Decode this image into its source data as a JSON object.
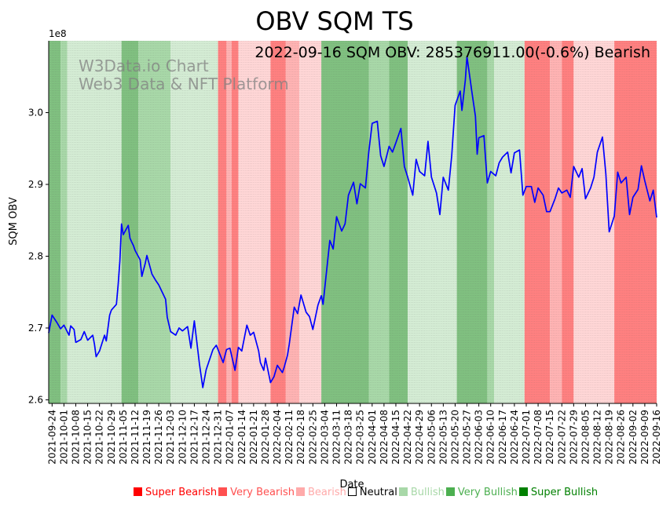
{
  "chart_data": {
    "type": "line",
    "title": "OBV SQM TS",
    "annotation": "2022-09-16 SQM OBV: 285376911.00(-0.6%) Bearish",
    "watermark": [
      "W3Data.io Chart",
      "Web3 Data & NFT Platform"
    ],
    "xlabel": "Date",
    "ylabel": "SQM OBV",
    "y_multiplier_label": "1e8",
    "ylim": [
      2.595,
      3.1
    ],
    "yticks": [
      2.6,
      2.7,
      2.8,
      2.9,
      3.0
    ],
    "ytick_labels": [
      "2.6",
      "2.7",
      "2.8",
      "2.9",
      "3.0"
    ],
    "x_start": "2021-09-22",
    "x_end": "2022-09-16",
    "xtick_labels": [
      "2021-09-24",
      "2021-10-01",
      "2021-10-08",
      "2021-10-15",
      "2021-10-22",
      "2021-10-29",
      "2021-11-05",
      "2021-11-12",
      "2021-11-19",
      "2021-11-26",
      "2021-12-03",
      "2021-12-10",
      "2021-12-17",
      "2021-12-24",
      "2021-12-31",
      "2022-01-07",
      "2022-01-14",
      "2022-01-21",
      "2022-01-28",
      "2022-02-04",
      "2022-02-11",
      "2022-02-18",
      "2022-02-25",
      "2022-03-04",
      "2022-03-11",
      "2022-03-18",
      "2022-03-25",
      "2022-04-01",
      "2022-04-08",
      "2022-04-15",
      "2022-04-22",
      "2022-04-29",
      "2022-05-06",
      "2022-05-13",
      "2022-05-20",
      "2022-05-27",
      "2022-06-03",
      "2022-06-10",
      "2022-06-17",
      "2022-06-24",
      "2022-07-01",
      "2022-07-08",
      "2022-07-15",
      "2022-07-22",
      "2022-07-29",
      "2022-08-05",
      "2022-08-12",
      "2022-08-19",
      "2022-08-26",
      "2022-09-02",
      "2022-09-09",
      "2022-09-16"
    ],
    "grid": "vertical dotted",
    "legend_position": "bottom",
    "series": [
      {
        "color": "#0000ff",
        "x": [
          "2021-09-22",
          "2021-09-24",
          "2021-09-27",
          "2021-09-29",
          "2021-10-01",
          "2021-10-04",
          "2021-10-05",
          "2021-10-07",
          "2021-10-08",
          "2021-10-11",
          "2021-10-13",
          "2021-10-15",
          "2021-10-18",
          "2021-10-19",
          "2021-10-20",
          "2021-10-22",
          "2021-10-25",
          "2021-10-26",
          "2021-10-28",
          "2021-10-29",
          "2021-11-01",
          "2021-11-02",
          "2021-11-03",
          "2021-11-04",
          "2021-11-05",
          "2021-11-08",
          "2021-11-09",
          "2021-11-10",
          "2021-11-11",
          "2021-11-12",
          "2021-11-15",
          "2021-11-16",
          "2021-11-18",
          "2021-11-19",
          "2021-11-22",
          "2021-11-24",
          "2021-11-26",
          "2021-11-30",
          "2021-12-01",
          "2021-12-03",
          "2021-12-06",
          "2021-12-08",
          "2021-12-10",
          "2021-12-13",
          "2021-12-15",
          "2021-12-17",
          "2021-12-20",
          "2021-12-22",
          "2021-12-24",
          "2021-12-28",
          "2021-12-30",
          "2022-01-03",
          "2022-01-05",
          "2022-01-07",
          "2022-01-10",
          "2022-01-12",
          "2022-01-14",
          "2022-01-17",
          "2022-01-19",
          "2022-01-21",
          "2022-01-24",
          "2022-01-25",
          "2022-01-27",
          "2022-01-28",
          "2022-01-31",
          "2022-02-02",
          "2022-02-04",
          "2022-02-07",
          "2022-02-08",
          "2022-02-10",
          "2022-02-11",
          "2022-02-14",
          "2022-02-16",
          "2022-02-18",
          "2022-02-21",
          "2022-02-23",
          "2022-02-25",
          "2022-02-28",
          "2022-03-02",
          "2022-03-03",
          "2022-03-07",
          "2022-03-09",
          "2022-03-11",
          "2022-03-14",
          "2022-03-16",
          "2022-03-18",
          "2022-03-21",
          "2022-03-23",
          "2022-03-25",
          "2022-03-28",
          "2022-03-30",
          "2022-04-01",
          "2022-04-04",
          "2022-04-06",
          "2022-04-08",
          "2022-04-11",
          "2022-04-13",
          "2022-04-15",
          "2022-04-18",
          "2022-04-20",
          "2022-04-22",
          "2022-04-25",
          "2022-04-27",
          "2022-04-29",
          "2022-05-02",
          "2022-05-04",
          "2022-05-06",
          "2022-05-09",
          "2022-05-11",
          "2022-05-13",
          "2022-05-16",
          "2022-05-18",
          "2022-05-20",
          "2022-05-23",
          "2022-05-24",
          "2022-05-26",
          "2022-05-27",
          "2022-05-30",
          "2022-06-01",
          "2022-06-02",
          "2022-06-03",
          "2022-06-06",
          "2022-06-08",
          "2022-06-10",
          "2022-06-13",
          "2022-06-15",
          "2022-06-17",
          "2022-06-20",
          "2022-06-22",
          "2022-06-24",
          "2022-06-27",
          "2022-06-29",
          "2022-07-01",
          "2022-07-04",
          "2022-07-06",
          "2022-07-08",
          "2022-07-11",
          "2022-07-13",
          "2022-07-15",
          "2022-07-18",
          "2022-07-20",
          "2022-07-22",
          "2022-07-25",
          "2022-07-27",
          "2022-07-29",
          "2022-08-01",
          "2022-08-03",
          "2022-08-05",
          "2022-08-08",
          "2022-08-10",
          "2022-08-12",
          "2022-08-15",
          "2022-08-17",
          "2022-08-19",
          "2022-08-22",
          "2022-08-24",
          "2022-08-26",
          "2022-08-29",
          "2022-08-31",
          "2022-09-02",
          "2022-09-05",
          "2022-09-07",
          "2022-09-09",
          "2022-09-12",
          "2022-09-14",
          "2022-09-16"
        ],
        "values": [
          2.693,
          2.718,
          2.707,
          2.699,
          2.704,
          2.69,
          2.703,
          2.698,
          2.68,
          2.684,
          2.695,
          2.683,
          2.69,
          2.678,
          2.66,
          2.668,
          2.69,
          2.682,
          2.718,
          2.725,
          2.733,
          2.76,
          2.793,
          2.845,
          2.83,
          2.843,
          2.825,
          2.82,
          2.815,
          2.808,
          2.795,
          2.772,
          2.79,
          2.801,
          2.775,
          2.767,
          2.76,
          2.74,
          2.715,
          2.695,
          2.69,
          2.7,
          2.696,
          2.702,
          2.672,
          2.71,
          2.65,
          2.617,
          2.642,
          2.67,
          2.676,
          2.652,
          2.67,
          2.672,
          2.641,
          2.673,
          2.668,
          2.704,
          2.69,
          2.694,
          2.668,
          2.652,
          2.641,
          2.658,
          2.624,
          2.632,
          2.648,
          2.638,
          2.645,
          2.662,
          2.677,
          2.729,
          2.72,
          2.746,
          2.722,
          2.716,
          2.698,
          2.732,
          2.745,
          2.733,
          2.822,
          2.81,
          2.855,
          2.835,
          2.845,
          2.885,
          2.903,
          2.873,
          2.901,
          2.895,
          2.945,
          2.985,
          2.988,
          2.94,
          2.925,
          2.953,
          2.945,
          2.958,
          2.978,
          2.925,
          2.91,
          2.885,
          2.935,
          2.918,
          2.912,
          2.96,
          2.91,
          2.888,
          2.858,
          2.91,
          2.892,
          2.94,
          3.01,
          3.03,
          3.003,
          3.045,
          3.078,
          3.027,
          2.995,
          2.942,
          2.965,
          2.968,
          2.902,
          2.918,
          2.912,
          2.93,
          2.938,
          2.945,
          2.916,
          2.944,
          2.948,
          2.885,
          2.897,
          2.897,
          2.875,
          2.895,
          2.885,
          2.862,
          2.862,
          2.88,
          2.895,
          2.888,
          2.892,
          2.882,
          2.925,
          2.91,
          2.922,
          2.88,
          2.895,
          2.91,
          2.945,
          2.966,
          2.915,
          2.834,
          2.856,
          2.917,
          2.902,
          2.91,
          2.858,
          2.882,
          2.893,
          2.926,
          2.905,
          2.877,
          2.892,
          2.854
        ]
      }
    ],
    "bands": [
      {
        "start": "2021-09-22",
        "end": "2021-09-29",
        "state": "very_bullish"
      },
      {
        "start": "2021-09-29",
        "end": "2021-10-03",
        "state": "bullish"
      },
      {
        "start": "2021-10-03",
        "end": "2021-11-04",
        "state": "neutral_bullish"
      },
      {
        "start": "2021-11-04",
        "end": "2021-11-14",
        "state": "very_bullish"
      },
      {
        "start": "2021-11-14",
        "end": "2021-12-03",
        "state": "bullish"
      },
      {
        "start": "2021-12-03",
        "end": "2021-12-31",
        "state": "neutral_bullish"
      },
      {
        "start": "2021-12-31",
        "end": "2022-01-05",
        "state": "very_bearish"
      },
      {
        "start": "2022-01-05",
        "end": "2022-01-08",
        "state": "bearish"
      },
      {
        "start": "2022-01-08",
        "end": "2022-01-12",
        "state": "very_bearish"
      },
      {
        "start": "2022-01-12",
        "end": "2022-01-31",
        "state": "neutral_bearish"
      },
      {
        "start": "2022-01-31",
        "end": "2022-02-09",
        "state": "very_bearish"
      },
      {
        "start": "2022-02-09",
        "end": "2022-02-17",
        "state": "bearish"
      },
      {
        "start": "2022-02-17",
        "end": "2022-03-02",
        "state": "neutral_bearish"
      },
      {
        "start": "2022-03-02",
        "end": "2022-03-30",
        "state": "very_bullish"
      },
      {
        "start": "2022-03-30",
        "end": "2022-04-11",
        "state": "bullish"
      },
      {
        "start": "2022-04-11",
        "end": "2022-04-22",
        "state": "very_bullish"
      },
      {
        "start": "2022-04-22",
        "end": "2022-05-21",
        "state": "neutral_bullish"
      },
      {
        "start": "2022-05-21",
        "end": "2022-06-08",
        "state": "very_bullish"
      },
      {
        "start": "2022-06-08",
        "end": "2022-06-12",
        "state": "bullish"
      },
      {
        "start": "2022-06-12",
        "end": "2022-06-30",
        "state": "neutral_bullish"
      },
      {
        "start": "2022-06-30",
        "end": "2022-07-15",
        "state": "very_bearish"
      },
      {
        "start": "2022-07-15",
        "end": "2022-07-22",
        "state": "bearish"
      },
      {
        "start": "2022-07-22",
        "end": "2022-07-29",
        "state": "very_bearish"
      },
      {
        "start": "2022-07-29",
        "end": "2022-08-22",
        "state": "neutral_bearish"
      },
      {
        "start": "2022-08-22",
        "end": "2022-09-16",
        "state": "very_bearish"
      }
    ],
    "band_colors": {
      "very_bearish": "#ff8080",
      "bearish": "#ffb3b3",
      "neutral_bearish": "#ffd6d6",
      "neutral_bullish": "#d4ecd4",
      "bullish": "#a8d8a8",
      "very_bullish": "#80c080"
    },
    "legend": [
      {
        "label": "Super Bearish",
        "color": "#ff0000",
        "swatch": "#ff0000"
      },
      {
        "label": "Very Bearish",
        "color": "#ff5050",
        "swatch": "#ff5050"
      },
      {
        "label": "Bearish",
        "color": "#ffaaaa",
        "swatch": "#ffaaaa"
      },
      {
        "label": "Neutral",
        "color": "#000000",
        "swatch": "#ffffff"
      },
      {
        "label": "Bullish",
        "color": "#a8d8a8",
        "swatch": "#a8d8a8"
      },
      {
        "label": "Very Bullish",
        "color": "#4caf50",
        "swatch": "#4caf50"
      },
      {
        "label": "Super Bullish",
        "color": "#008000",
        "swatch": "#008000"
      }
    ]
  }
}
